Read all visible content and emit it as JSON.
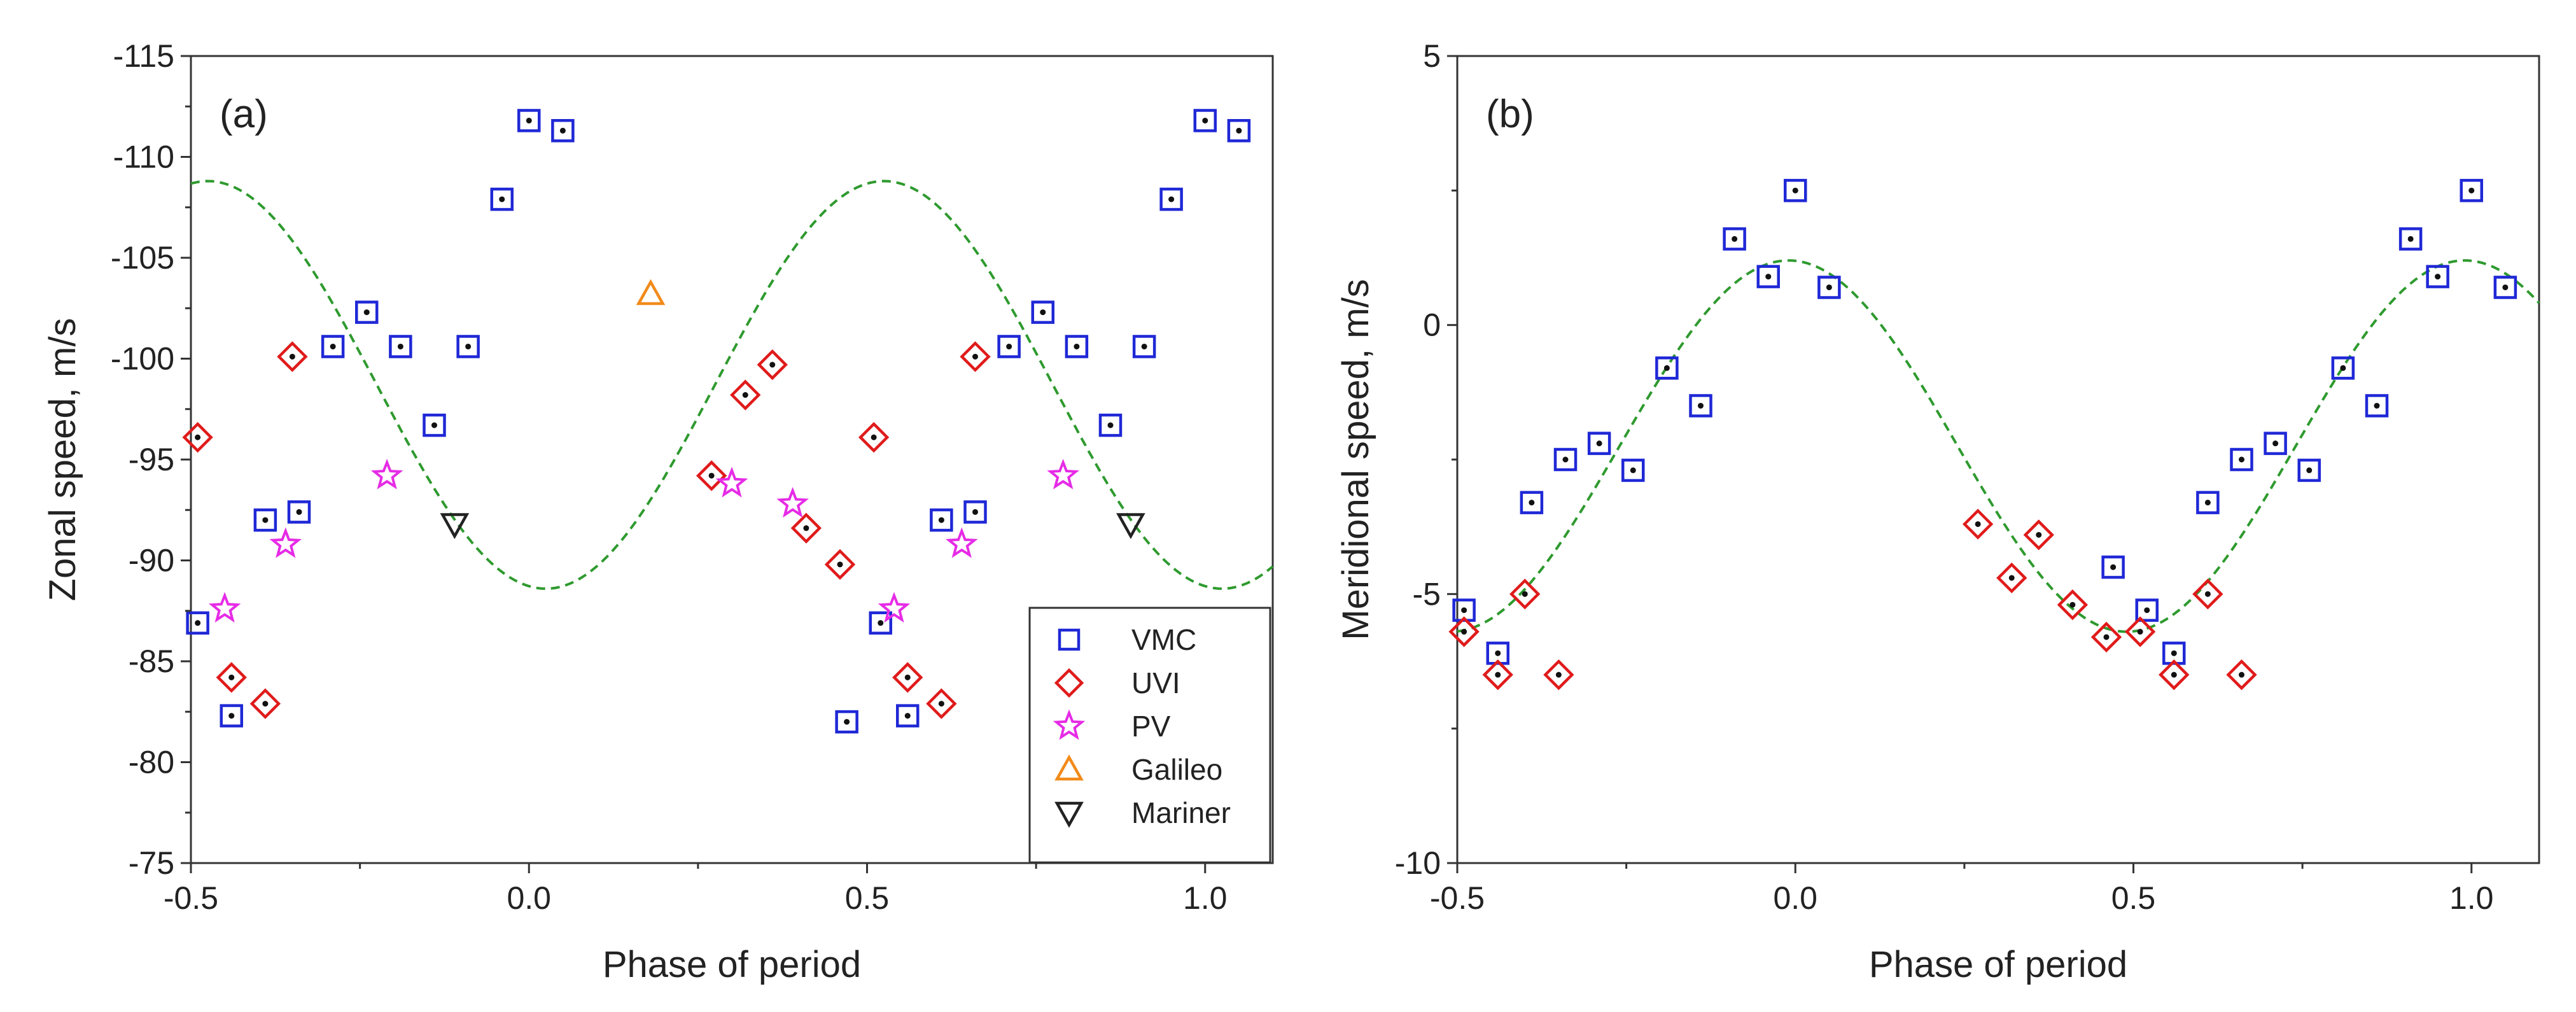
{
  "colors": {
    "vmc": "#1f28d6",
    "uvi": "#e01b1b",
    "pv": "#e62be6",
    "galileo": "#f28a1a",
    "mariner": "#222222",
    "fit": "#2e9a2e",
    "dot": "#111111"
  },
  "chart_data": [
    {
      "type": "scatter",
      "panel_label": "(a)",
      "xlabel": "Phase of period",
      "ylabel": "Zonal speed, m/s",
      "xlim": [
        -0.5,
        1.1
      ],
      "ylim": [
        -75,
        -115
      ],
      "y_inverted": true,
      "xticks": [
        -0.5,
        0.0,
        0.5,
        1.0
      ],
      "xtick_labels": [
        "-0.5",
        "0.0",
        "0.5",
        "1.0"
      ],
      "yticks": [
        -115,
        -110,
        -105,
        -100,
        -95,
        -90,
        -85,
        -80,
        -75
      ],
      "ytick_labels": [
        "-115",
        "-110",
        "-105",
        "-100",
        "-95",
        "-90",
        "-85",
        "-80",
        "-75"
      ],
      "legend": {
        "position": "bottom-right",
        "entries": [
          "VMC",
          "UVI",
          "PV",
          "Galileo",
          "Mariner"
        ]
      },
      "fit": {
        "name": "fit",
        "style": "dashed",
        "mean": -98.7,
        "amplitude": 10.1,
        "phase_of_max": 0.025
      },
      "series": [
        {
          "name": "VMC",
          "marker": "square-dot",
          "x": [
            -0.49,
            -0.44,
            -0.39,
            -0.34,
            -0.29,
            -0.24,
            -0.19,
            -0.14,
            -0.09,
            -0.04,
            0.0,
            0.05,
            0.47,
            0.52,
            0.56,
            0.61,
            0.66,
            0.71,
            0.76,
            0.81,
            0.86,
            0.91,
            0.95,
            1.0,
            1.05
          ],
          "y": [
            -86.9,
            -82.3,
            -92.0,
            -92.4,
            -100.6,
            -102.3,
            -100.6,
            -96.7,
            -100.6,
            -107.9,
            -111.8,
            -111.3,
            -82.0,
            -86.9,
            -82.3,
            -92.0,
            -92.4,
            -100.6,
            -102.3,
            -100.6,
            -96.7,
            -100.6,
            -107.9,
            -111.8,
            -111.3
          ]
        },
        {
          "name": "UVI",
          "marker": "diamond-dot",
          "x": [
            -0.49,
            -0.44,
            -0.39,
            -0.35,
            0.27,
            0.32,
            0.36,
            0.41,
            0.46,
            0.51,
            0.56,
            0.61,
            0.66
          ],
          "y": [
            -96.1,
            -84.2,
            -82.9,
            -100.1,
            -94.2,
            -98.2,
            -99.7,
            -91.6,
            -89.8,
            -96.1,
            -84.2,
            -82.9,
            -100.1
          ]
        },
        {
          "name": "PV",
          "marker": "star",
          "x": [
            -0.45,
            -0.36,
            -0.21,
            0.3,
            0.39,
            0.54,
            0.64,
            0.79
          ],
          "y": [
            -87.6,
            -90.8,
            -94.2,
            -93.8,
            -92.8,
            -87.6,
            -90.8,
            -94.2
          ]
        },
        {
          "name": "Galileo",
          "marker": "triangle-up",
          "x": [
            0.18
          ],
          "y": [
            -103.2
          ]
        },
        {
          "name": "Mariner",
          "marker": "triangle-down",
          "x": [
            -0.11,
            0.89
          ],
          "y": [
            -91.8,
            -91.8
          ]
        }
      ]
    },
    {
      "type": "scatter",
      "panel_label": "(b)",
      "xlabel": "Phase of period",
      "ylabel": "Meridional speed, m/s",
      "xlim": [
        -0.5,
        1.1
      ],
      "ylim": [
        -10,
        5
      ],
      "y_inverted": false,
      "xticks": [
        -0.5,
        0.0,
        0.5,
        1.0
      ],
      "xtick_labels": [
        "-0.5",
        "0.0",
        "0.5",
        "1.0"
      ],
      "yticks": [
        5,
        0,
        -5,
        -10
      ],
      "ytick_labels": [
        "5",
        "0",
        "-5",
        "-10"
      ],
      "fit": {
        "name": "fit",
        "style": "dashed",
        "mean": -2.25,
        "amplitude": 3.45,
        "phase_of_max": -0.01
      },
      "series": [
        {
          "name": "VMC",
          "marker": "square-dot",
          "x": [
            -0.49,
            -0.44,
            -0.39,
            -0.34,
            -0.29,
            -0.24,
            -0.19,
            -0.14,
            -0.09,
            -0.04,
            0.0,
            0.05,
            0.47,
            0.52,
            0.56,
            0.61,
            0.66,
            0.71,
            0.76,
            0.81,
            0.86,
            0.91,
            0.95,
            1.0,
            1.05
          ],
          "y": [
            -5.3,
            -6.1,
            -3.3,
            -2.5,
            -2.2,
            -2.7,
            -0.8,
            -1.5,
            1.6,
            0.9,
            2.5,
            0.7,
            -4.5,
            -5.3,
            -6.1,
            -3.3,
            -2.5,
            -2.2,
            -2.7,
            -0.8,
            -1.5,
            1.6,
            0.9,
            2.5,
            0.7
          ]
        },
        {
          "name": "UVI",
          "marker": "diamond-dot",
          "x": [
            -0.49,
            -0.44,
            -0.4,
            -0.35,
            0.27,
            0.32,
            0.36,
            0.41,
            0.46,
            0.51,
            0.56,
            0.61,
            0.66
          ],
          "y": [
            -5.7,
            -6.5,
            -5.0,
            -6.5,
            -3.7,
            -4.7,
            -3.9,
            -5.2,
            -5.8,
            -5.7,
            -6.5,
            -5.0,
            -6.5
          ]
        }
      ]
    }
  ]
}
